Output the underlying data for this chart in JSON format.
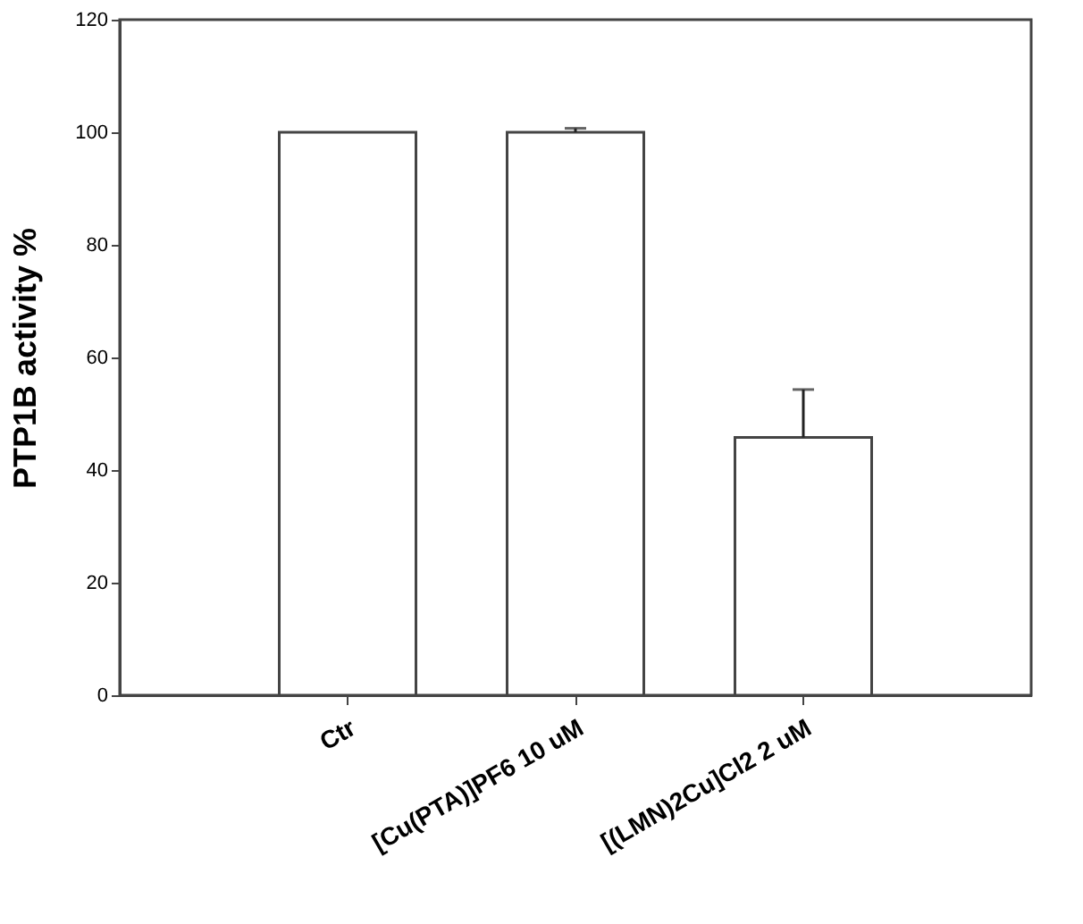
{
  "chart_data": {
    "type": "bar",
    "ylabel": "PTP1B activity %",
    "categories": [
      "Ctr",
      "[Cu(PTA)]PF6 10 uM",
      "[(LMN)2Cu]Cl2 2 uM"
    ],
    "values": [
      100,
      100,
      45.8
    ],
    "errors": [
      null,
      [
        100,
        100.7
      ],
      [
        45.8,
        54.3
      ]
    ],
    "color": "#ffffff",
    "ylim": [
      0,
      120
    ],
    "yticks": [
      0,
      20,
      40,
      60,
      80,
      100,
      120
    ],
    "grid": false
  }
}
